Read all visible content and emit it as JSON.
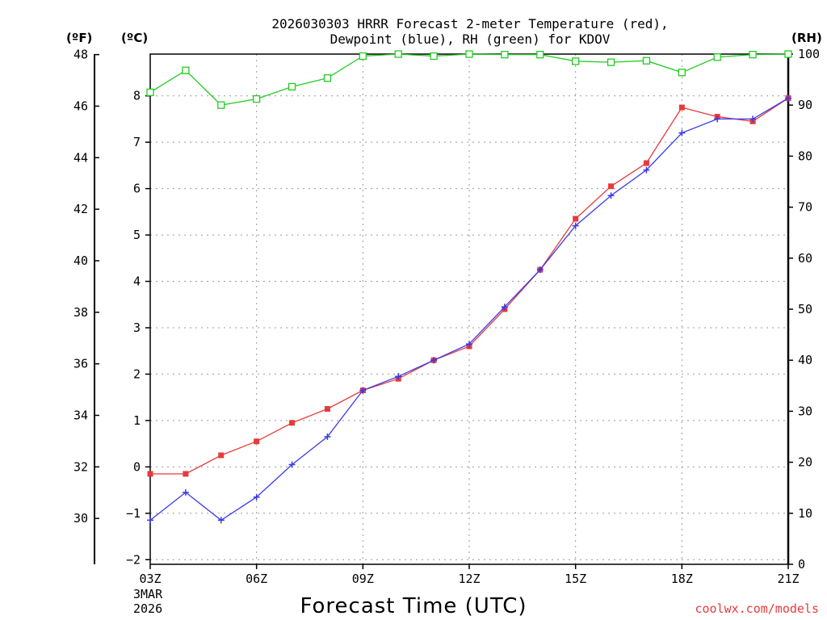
{
  "chart_data": {
    "type": "line",
    "title_line1": "2026030303 HRRR Forecast 2-meter Temperature (red),",
    "title_line2": "Dewpoint (blue), RH (green) for KDOV",
    "xlabel": "Forecast Time (UTC)",
    "credit": "coolwx.com/models",
    "units": {
      "fahrenheit": "(ºF)",
      "celsius": "(ºC)",
      "rh": "(RH)"
    },
    "x": [
      3,
      4,
      5,
      6,
      7,
      8,
      9,
      10,
      11,
      12,
      13,
      14,
      15,
      16,
      17,
      18,
      19,
      20,
      21
    ],
    "x_range": [
      3,
      21
    ],
    "x_ticks": [
      {
        "hour": 3,
        "label": "03Z"
      },
      {
        "hour": 6,
        "label": "06Z"
      },
      {
        "hour": 9,
        "label": "09Z"
      },
      {
        "hour": 12,
        "label": "12Z"
      },
      {
        "hour": 15,
        "label": "15Z"
      },
      {
        "hour": 18,
        "label": "18Z"
      },
      {
        "hour": 21,
        "label": "21Z"
      }
    ],
    "date_labels": [
      "3MAR",
      "2026"
    ],
    "celsius_range": [
      -2.1,
      8.9
    ],
    "celsius_ticks": [
      -2,
      -1,
      0,
      1,
      2,
      3,
      4,
      5,
      6,
      7,
      8
    ],
    "fahrenheit_ticks": [
      30,
      32,
      34,
      36,
      38,
      40,
      42,
      44,
      46,
      48
    ],
    "rh_range": [
      0,
      100
    ],
    "rh_ticks": [
      0,
      10,
      20,
      30,
      40,
      50,
      60,
      70,
      80,
      90,
      100
    ],
    "series": [
      {
        "name": "Temperature",
        "color": "#e83a3a",
        "marker": "square",
        "values": [
          -0.15,
          -0.15,
          0.25,
          0.55,
          0.95,
          1.25,
          1.65,
          1.9,
          2.3,
          2.6,
          3.4,
          4.25,
          5.35,
          6.05,
          6.55,
          7.75,
          7.55,
          7.45,
          7.95
        ]
      },
      {
        "name": "Dewpoint",
        "color": "#3a3ae8",
        "marker": "plus",
        "values": [
          -1.15,
          -0.55,
          -1.15,
          -0.65,
          0.05,
          0.65,
          1.65,
          1.95,
          2.3,
          2.65,
          3.45,
          4.25,
          5.2,
          5.85,
          6.4,
          7.2,
          7.5,
          7.5,
          7.95
        ]
      },
      {
        "name": "RH",
        "color": "#22cc22",
        "marker": "open-square",
        "values": [
          92.5,
          96.8,
          90.0,
          91.2,
          93.6,
          95.3,
          99.6,
          100,
          99.6,
          100,
          99.9,
          99.9,
          98.6,
          98.4,
          98.7,
          96.4,
          99.4,
          99.9,
          100
        ]
      }
    ]
  }
}
